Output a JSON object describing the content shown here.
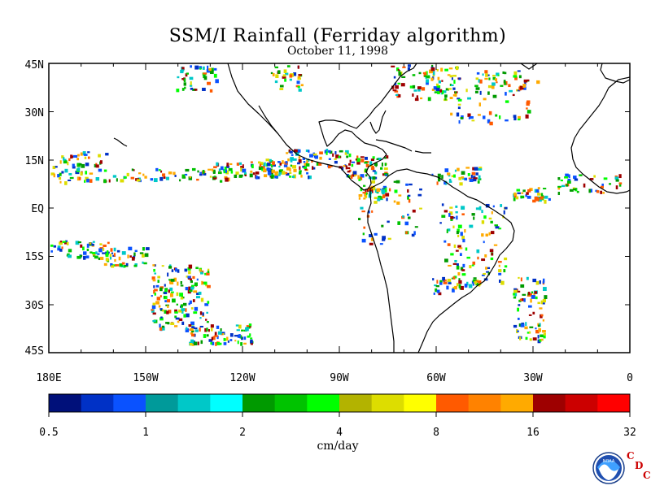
{
  "title": "SSM/I Rainfall (Ferriday algorithm)",
  "subtitle": "October 11, 1998",
  "axes": {
    "lat_labels": [
      "45N",
      "30N",
      "15N",
      "EQ",
      "15S",
      "30S",
      "45S"
    ],
    "lon_labels": [
      "180E",
      "150W",
      "120W",
      "90W",
      "60W",
      "30W",
      "0"
    ]
  },
  "colorbar": {
    "colors": [
      "#00107a",
      "#0031c6",
      "#0a52ff",
      "#009a9a",
      "#00c8c8",
      "#00ffff",
      "#009a00",
      "#00c300",
      "#00ff00",
      "#b3b300",
      "#dddd00",
      "#ffff00",
      "#ff5a00",
      "#ff8200",
      "#ffaa00",
      "#9e0000",
      "#cc0000",
      "#ff0000"
    ],
    "tick_labels": [
      "0.5",
      "1",
      "2",
      "4",
      "8",
      "16",
      "32"
    ],
    "unit_label": "cm/day"
  },
  "logo": {
    "text": "NOAA",
    "cdc_letters": [
      "C",
      "D",
      "C"
    ]
  },
  "colors": {
    "land_outline": "#000000",
    "map_border": "#000000",
    "background": "#ffffff"
  }
}
